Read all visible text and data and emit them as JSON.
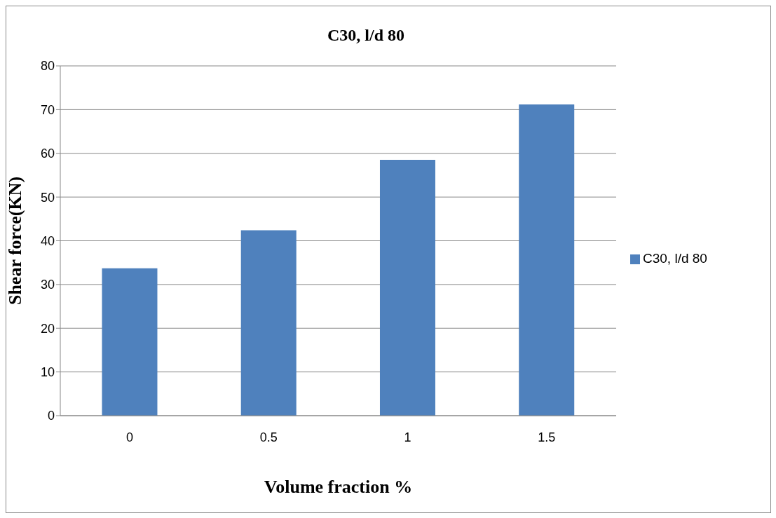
{
  "chart_data": {
    "type": "bar",
    "title": "C30, l/d 80",
    "xlabel": "Volume fraction %",
    "ylabel": "Shear force(KN)",
    "categories": [
      "0",
      "0.5",
      "1",
      "1.5"
    ],
    "series": [
      {
        "name": "C30, l/d 80",
        "color": "#4f81bd",
        "values": [
          33.7,
          42.4,
          58.5,
          71.2
        ]
      }
    ],
    "ylim": [
      0,
      80
    ],
    "yticks": [
      0,
      10,
      20,
      30,
      40,
      50,
      60,
      70,
      80
    ],
    "grid": "y",
    "legend": "right"
  }
}
